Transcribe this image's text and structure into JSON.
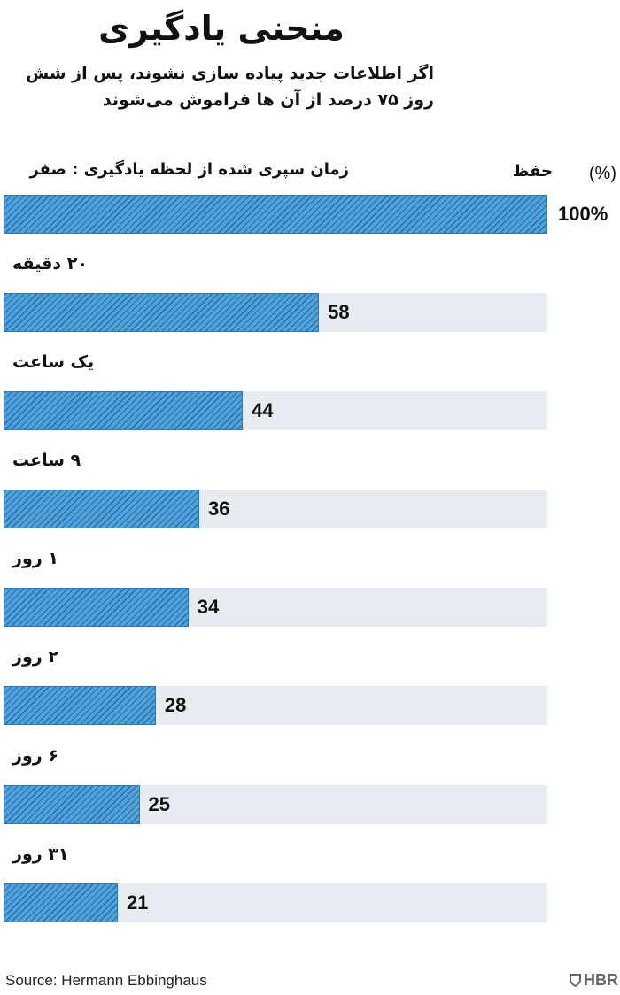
{
  "chart_data": {
    "type": "bar",
    "orientation": "horizontal",
    "title": "منحنی یادگیری",
    "subtitle": "اگر اطلاعات جدید پیاده سازی نشوند، پس از شش روز ۷۵ درصد از آن ها فراموش می‌شوند",
    "column_header": "حفظ",
    "unit_label": "(%)",
    "categories": [
      "زمان سپری شده از لحظه یادگیری : صفر",
      "۲۰ دقیقه",
      "یک ساعت",
      "۹ ساعت",
      "۱ روز",
      "۲ روز",
      "۶ روز",
      "۳۱ روز"
    ],
    "values": [
      100,
      58,
      44,
      36,
      34,
      28,
      25,
      21
    ],
    "value_labels": [
      "100%",
      "58",
      "44",
      "36",
      "34",
      "28",
      "25",
      "21"
    ],
    "xlim": [
      0,
      100
    ],
    "grid": false,
    "legend": "none",
    "colors": {
      "fill": "#4fa3dc",
      "hatch": "#1e4f80",
      "track": "#e8ebef"
    }
  },
  "footer": {
    "source": "Source: Hermann Ebbinghaus",
    "brand": "HBR"
  },
  "icons": {
    "brand": "hbr-shield-icon"
  }
}
